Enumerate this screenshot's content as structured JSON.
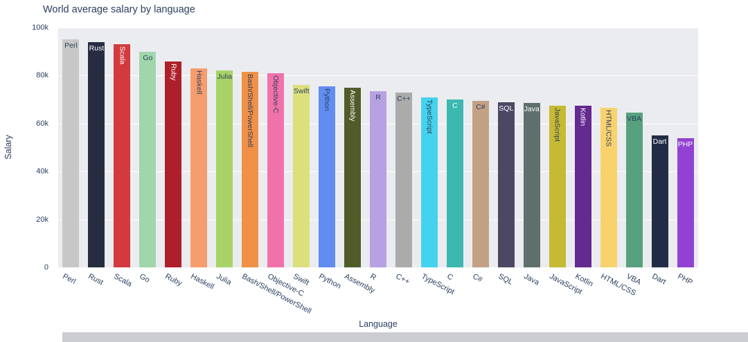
{
  "page": {
    "background": "#ffffff",
    "scrollbar_color": "#cccdd1"
  },
  "chart_data": {
    "type": "bar",
    "title": "World average salary by language",
    "xlabel": "Language",
    "ylabel": "Salary",
    "ylim": [
      0,
      100000
    ],
    "grid": true,
    "legend": "none",
    "plot_bg": "#ebecf0",
    "axis_color": "#2a3f5f",
    "yticks": [
      {
        "value": 0,
        "label": "0"
      },
      {
        "value": 20000,
        "label": "20k"
      },
      {
        "value": 40000,
        "label": "40k"
      },
      {
        "value": 60000,
        "label": "60k"
      },
      {
        "value": 80000,
        "label": "80k"
      },
      {
        "value": 100000,
        "label": "100k"
      }
    ],
    "bars": [
      {
        "label": "Perl",
        "value": 95000,
        "color": "#c7c7c7",
        "label_color": "#2a3f5f",
        "label_vertical": false
      },
      {
        "label": "Rust",
        "value": 94000,
        "color": "#272d41",
        "label_color": "#ffffff",
        "label_vertical": false
      },
      {
        "label": "Scala",
        "value": 93000,
        "color": "#d23a3e",
        "label_color": "#ffffff",
        "label_vertical": true
      },
      {
        "label": "Go",
        "value": 90000,
        "color": "#a0d6ab",
        "label_color": "#2a3f5f",
        "label_vertical": false
      },
      {
        "label": "Ruby",
        "value": 86000,
        "color": "#ae2029",
        "label_color": "#ffffff",
        "label_vertical": true
      },
      {
        "label": "Haskell",
        "value": 83000,
        "color": "#f69d6d",
        "label_color": "#2a3f5f",
        "label_vertical": true
      },
      {
        "label": "Julia",
        "value": 82000,
        "color": "#a8d467",
        "label_color": "#2a3f5f",
        "label_vertical": false
      },
      {
        "label": "Bash/Shell/PowerShell",
        "value": 81500,
        "color": "#f09147",
        "label_color": "#2a3f5f",
        "label_vertical": true
      },
      {
        "label": "Objective-C",
        "value": 81000,
        "color": "#f172ab",
        "label_color": "#2a3f5f",
        "label_vertical": true
      },
      {
        "label": "Swift",
        "value": 76000,
        "color": "#dbe07c",
        "label_color": "#2a3f5f",
        "label_vertical": false
      },
      {
        "label": "Python",
        "value": 75500,
        "color": "#618df2",
        "label_color": "#2a3f5f",
        "label_vertical": true
      },
      {
        "label": "Assembly",
        "value": 75000,
        "color": "#4f5c29",
        "label_color": "#ffffff",
        "label_vertical": true
      },
      {
        "label": "R",
        "value": 73500,
        "color": "#b8a1e2",
        "label_color": "#2a3f5f",
        "label_vertical": false
      },
      {
        "label": "C++",
        "value": 73000,
        "color": "#ababab",
        "label_color": "#2a3f5f",
        "label_vertical": false
      },
      {
        "label": "TypeScript",
        "value": 71000,
        "color": "#44d3ef",
        "label_color": "#2a3f5f",
        "label_vertical": true
      },
      {
        "label": "C",
        "value": 70000,
        "color": "#3db8b0",
        "label_color": "#ffffff",
        "label_vertical": false
      },
      {
        "label": "C#",
        "value": 69500,
        "color": "#c2a184",
        "label_color": "#2a3f5f",
        "label_vertical": false
      },
      {
        "label": "SQL",
        "value": 69000,
        "color": "#4c4864",
        "label_color": "#ffffff",
        "label_vertical": false
      },
      {
        "label": "Java",
        "value": 68500,
        "color": "#5f706c",
        "label_color": "#ffffff",
        "label_vertical": false
      },
      {
        "label": "JavaScript",
        "value": 67500,
        "color": "#c6ba33",
        "label_color": "#2a3f5f",
        "label_vertical": true
      },
      {
        "label": "Kotlin",
        "value": 67500,
        "color": "#642a90",
        "label_color": "#ffffff",
        "label_vertical": true
      },
      {
        "label": "HTML/CSS",
        "value": 66500,
        "color": "#f9d26e",
        "label_color": "#2a3f5f",
        "label_vertical": true
      },
      {
        "label": "VBA",
        "value": 64500,
        "color": "#57a17e",
        "label_color": "#2a3f5f",
        "label_vertical": false
      },
      {
        "label": "Dart",
        "value": 55000,
        "color": "#232c45",
        "label_color": "#ffffff",
        "label_vertical": false
      },
      {
        "label": "PHP",
        "value": 54000,
        "color": "#9242d2",
        "label_color": "#ffffff",
        "label_vertical": false
      }
    ]
  }
}
